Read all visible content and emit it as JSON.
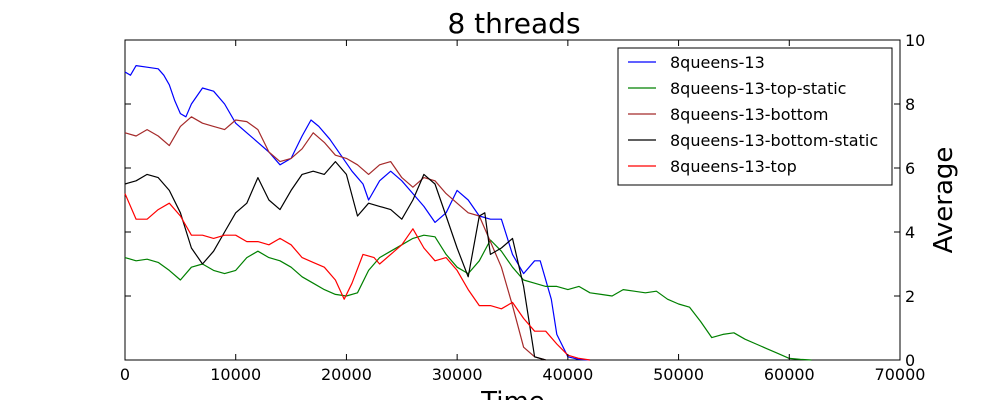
{
  "chart_data": {
    "type": "line",
    "title": "8 threads",
    "xlabel": "Time",
    "ylabel": "Average",
    "xlim": [
      0,
      70000
    ],
    "ylim": [
      0,
      10
    ],
    "xticks": [
      0,
      10000,
      20000,
      30000,
      40000,
      50000,
      60000,
      70000
    ],
    "yticks": [
      0,
      2,
      4,
      6,
      8,
      10
    ],
    "grid": false,
    "legend_position": "top-right",
    "series": [
      {
        "name": "8queens-13",
        "color": "#0000ff",
        "points": [
          [
            0,
            9.0
          ],
          [
            500,
            8.9
          ],
          [
            1000,
            9.2
          ],
          [
            2000,
            9.15
          ],
          [
            3000,
            9.1
          ],
          [
            3500,
            8.9
          ],
          [
            4000,
            8.6
          ],
          [
            4500,
            8.1
          ],
          [
            5000,
            7.7
          ],
          [
            5500,
            7.6
          ],
          [
            6000,
            8.0
          ],
          [
            7000,
            8.5
          ],
          [
            8000,
            8.4
          ],
          [
            9000,
            8.0
          ],
          [
            10000,
            7.4
          ],
          [
            11000,
            7.1
          ],
          [
            12000,
            6.8
          ],
          [
            13000,
            6.5
          ],
          [
            14000,
            6.1
          ],
          [
            15000,
            6.3
          ],
          [
            16000,
            7.0
          ],
          [
            16800,
            7.5
          ],
          [
            17500,
            7.3
          ],
          [
            18500,
            6.9
          ],
          [
            19500,
            6.4
          ],
          [
            20500,
            5.9
          ],
          [
            21500,
            5.5
          ],
          [
            22000,
            5.0
          ],
          [
            23000,
            5.6
          ],
          [
            24000,
            5.9
          ],
          [
            25000,
            5.6
          ],
          [
            26000,
            5.2
          ],
          [
            27000,
            4.8
          ],
          [
            28000,
            4.3
          ],
          [
            29000,
            4.6
          ],
          [
            30000,
            5.3
          ],
          [
            31000,
            5.0
          ],
          [
            32000,
            4.5
          ],
          [
            33000,
            4.4
          ],
          [
            34000,
            4.4
          ],
          [
            35000,
            3.3
          ],
          [
            36000,
            2.7
          ],
          [
            37000,
            3.1
          ],
          [
            37500,
            3.1
          ],
          [
            38500,
            1.9
          ],
          [
            39000,
            0.8
          ],
          [
            40000,
            0.1
          ],
          [
            41000,
            0.02
          ],
          [
            42000,
            0.0
          ]
        ]
      },
      {
        "name": "8queens-13-top-static",
        "color": "#008000",
        "points": [
          [
            0,
            3.2
          ],
          [
            1000,
            3.1
          ],
          [
            2000,
            3.15
          ],
          [
            3000,
            3.05
          ],
          [
            4000,
            2.8
          ],
          [
            5000,
            2.5
          ],
          [
            6000,
            2.9
          ],
          [
            7000,
            3.0
          ],
          [
            8000,
            2.8
          ],
          [
            9000,
            2.7
          ],
          [
            10000,
            2.8
          ],
          [
            11000,
            3.2
          ],
          [
            12000,
            3.4
          ],
          [
            13000,
            3.2
          ],
          [
            14000,
            3.1
          ],
          [
            15000,
            2.9
          ],
          [
            16000,
            2.6
          ],
          [
            17000,
            2.4
          ],
          [
            18000,
            2.2
          ],
          [
            19000,
            2.05
          ],
          [
            20000,
            2.0
          ],
          [
            21000,
            2.1
          ],
          [
            22000,
            2.8
          ],
          [
            23000,
            3.2
          ],
          [
            24000,
            3.4
          ],
          [
            25000,
            3.6
          ],
          [
            26000,
            3.8
          ],
          [
            27000,
            3.9
          ],
          [
            28000,
            3.85
          ],
          [
            29000,
            3.3
          ],
          [
            30000,
            2.9
          ],
          [
            31000,
            2.7
          ],
          [
            32000,
            3.1
          ],
          [
            33000,
            3.75
          ],
          [
            34000,
            3.4
          ],
          [
            35000,
            2.9
          ],
          [
            36000,
            2.5
          ],
          [
            37000,
            2.4
          ],
          [
            38000,
            2.3
          ],
          [
            39000,
            2.3
          ],
          [
            40000,
            2.2
          ],
          [
            41000,
            2.3
          ],
          [
            42000,
            2.1
          ],
          [
            43000,
            2.05
          ],
          [
            44000,
            2.0
          ],
          [
            45000,
            2.2
          ],
          [
            46000,
            2.15
          ],
          [
            47000,
            2.1
          ],
          [
            48000,
            2.15
          ],
          [
            49000,
            1.9
          ],
          [
            50000,
            1.75
          ],
          [
            51000,
            1.65
          ],
          [
            52000,
            1.2
          ],
          [
            53000,
            0.7
          ],
          [
            54000,
            0.8
          ],
          [
            55000,
            0.85
          ],
          [
            56000,
            0.65
          ],
          [
            57000,
            0.5
          ],
          [
            58000,
            0.35
          ],
          [
            59000,
            0.2
          ],
          [
            60000,
            0.05
          ],
          [
            61000,
            0.02
          ],
          [
            62000,
            0.0
          ]
        ]
      },
      {
        "name": "8queens-13-bottom",
        "color": "#a52a2a",
        "points": [
          [
            0,
            7.1
          ],
          [
            1000,
            7.0
          ],
          [
            2000,
            7.2
          ],
          [
            3000,
            7.0
          ],
          [
            4000,
            6.7
          ],
          [
            5000,
            7.3
          ],
          [
            6000,
            7.6
          ],
          [
            7000,
            7.4
          ],
          [
            8000,
            7.3
          ],
          [
            9000,
            7.2
          ],
          [
            10000,
            7.5
          ],
          [
            11000,
            7.45
          ],
          [
            12000,
            7.2
          ],
          [
            13000,
            6.5
          ],
          [
            14000,
            6.2
          ],
          [
            15000,
            6.3
          ],
          [
            16000,
            6.6
          ],
          [
            17000,
            7.1
          ],
          [
            18000,
            6.8
          ],
          [
            19000,
            6.4
          ],
          [
            20000,
            6.3
          ],
          [
            21000,
            6.1
          ],
          [
            22000,
            5.8
          ],
          [
            23000,
            6.1
          ],
          [
            24000,
            6.2
          ],
          [
            25000,
            5.7
          ],
          [
            26000,
            5.4
          ],
          [
            27000,
            5.7
          ],
          [
            28000,
            5.6
          ],
          [
            29000,
            5.2
          ],
          [
            30000,
            4.9
          ],
          [
            31000,
            4.6
          ],
          [
            32000,
            4.5
          ],
          [
            33000,
            3.7
          ],
          [
            34000,
            2.9
          ],
          [
            35000,
            1.7
          ],
          [
            36000,
            0.4
          ],
          [
            37000,
            0.1
          ],
          [
            38000,
            0.0
          ]
        ]
      },
      {
        "name": "8queens-13-bottom-static",
        "color": "#000000",
        "points": [
          [
            0,
            5.5
          ],
          [
            1000,
            5.6
          ],
          [
            2000,
            5.8
          ],
          [
            3000,
            5.7
          ],
          [
            4000,
            5.3
          ],
          [
            5000,
            4.6
          ],
          [
            6000,
            3.5
          ],
          [
            7000,
            3.0
          ],
          [
            8000,
            3.4
          ],
          [
            9000,
            4.0
          ],
          [
            10000,
            4.6
          ],
          [
            11000,
            4.9
          ],
          [
            12000,
            5.7
          ],
          [
            13000,
            5.0
          ],
          [
            14000,
            4.7
          ],
          [
            15000,
            5.3
          ],
          [
            16000,
            5.8
          ],
          [
            17000,
            5.9
          ],
          [
            18000,
            5.8
          ],
          [
            19000,
            6.2
          ],
          [
            20000,
            5.8
          ],
          [
            21000,
            4.5
          ],
          [
            22000,
            4.9
          ],
          [
            23000,
            4.8
          ],
          [
            24000,
            4.7
          ],
          [
            25000,
            4.4
          ],
          [
            26000,
            5.0
          ],
          [
            27000,
            5.8
          ],
          [
            28000,
            5.5
          ],
          [
            29000,
            4.5
          ],
          [
            30000,
            3.5
          ],
          [
            31000,
            2.6
          ],
          [
            32000,
            4.5
          ],
          [
            32500,
            4.6
          ],
          [
            33000,
            3.3
          ],
          [
            34000,
            3.5
          ],
          [
            35000,
            3.8
          ],
          [
            36000,
            2.3
          ],
          [
            37000,
            0.1
          ],
          [
            38000,
            0.0
          ]
        ]
      },
      {
        "name": "8queens-13-top",
        "color": "#ff0000",
        "points": [
          [
            0,
            5.2
          ],
          [
            1000,
            4.4
          ],
          [
            2000,
            4.4
          ],
          [
            3000,
            4.7
          ],
          [
            4000,
            4.9
          ],
          [
            5000,
            4.5
          ],
          [
            6000,
            3.9
          ],
          [
            7000,
            3.9
          ],
          [
            8000,
            3.8
          ],
          [
            9000,
            3.9
          ],
          [
            10000,
            3.9
          ],
          [
            11000,
            3.7
          ],
          [
            12000,
            3.7
          ],
          [
            13000,
            3.6
          ],
          [
            14000,
            3.8
          ],
          [
            15000,
            3.6
          ],
          [
            16000,
            3.2
          ],
          [
            17000,
            3.05
          ],
          [
            18000,
            2.9
          ],
          [
            19000,
            2.5
          ],
          [
            19800,
            1.9
          ],
          [
            20500,
            2.4
          ],
          [
            21500,
            3.3
          ],
          [
            22500,
            3.2
          ],
          [
            23000,
            3.0
          ],
          [
            24000,
            3.3
          ],
          [
            25000,
            3.6
          ],
          [
            26000,
            4.1
          ],
          [
            27000,
            3.5
          ],
          [
            28000,
            3.1
          ],
          [
            29000,
            3.2
          ],
          [
            30000,
            2.8
          ],
          [
            31000,
            2.2
          ],
          [
            32000,
            1.7
          ],
          [
            33000,
            1.7
          ],
          [
            34000,
            1.6
          ],
          [
            35000,
            1.8
          ],
          [
            36000,
            1.3
          ],
          [
            37000,
            0.9
          ],
          [
            38000,
            0.9
          ],
          [
            39000,
            0.5
          ],
          [
            40000,
            0.15
          ],
          [
            41000,
            0.05
          ],
          [
            42000,
            0.0
          ]
        ]
      }
    ]
  }
}
